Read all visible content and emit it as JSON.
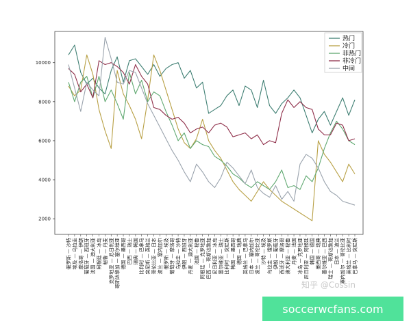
{
  "chart_data": {
    "type": "line",
    "ylim": [
      1200,
      11600
    ],
    "yticks": [
      2000,
      4000,
      6000,
      8000,
      10000
    ],
    "grid": false,
    "legend_position": "top-right",
    "categories": [
      "俄罗斯 — 沙特",
      "埃及 — 乌拉圭",
      "摩洛哥 — 伊朗",
      "葡萄牙 — 西班牙",
      "法国 — 澳大利亚",
      "阿根廷 — 冰岛",
      "秘鲁 — 丹麦",
      "克罗地亚 — 尼日利亚",
      "哥斯达黎加 — 塞尔维亚",
      "德国 — 墨西哥",
      "巴西 — 瑞士",
      "瑞典 — 韩国",
      "比利时 — 巴拿马",
      "突尼斯 — 英格兰",
      "哥伦比亚 — 日本",
      "波兰 — 塞内加尔",
      "俄罗斯 — 埃及",
      "葡萄牙 — 摩洛哥",
      "乌拉圭 — 沙特",
      "伊朗 — 西班牙",
      "丹麦 — 澳大利亚",
      "法国 — 秘鲁",
      "阿根廷 — 克罗地亚",
      "巴西 — 哥斯达黎加",
      "尼日利亚 — 冰岛",
      "塞尔维亚 — 瑞士",
      "比利时 — 突尼斯",
      "韩国 — 墨西哥",
      "德国 — 瑞典",
      "英格兰 — 巴拿马",
      "日本 — 塞内加尔",
      "波兰 — 哥伦比亚",
      "沙特 — 埃及",
      "乌拉圭 — 俄罗斯",
      "伊朗 — 葡萄牙",
      "西班牙 — 摩洛哥",
      "澳大利亚 — 秘鲁",
      "丹麦 — 法国",
      "冰岛 — 克罗地亚",
      "尼日利亚 — 阿根廷",
      "韩国 — 德国",
      "墨西哥 — 瑞典",
      "塞尔维亚 — 巴西",
      "瑞士 — 哥斯达黎加",
      "日本 — 波兰",
      "塞内加尔 — 哥伦比亚",
      "英格兰 — 比利时",
      "巴拿马 — 突尼斯"
    ],
    "series": [
      {
        "name": "热门",
        "color": "#3f7f73",
        "values": [
          10400,
          10900,
          9500,
          8900,
          9200,
          8700,
          8400,
          9600,
          10300,
          9000,
          10100,
          10200,
          9800,
          9400,
          9900,
          9300,
          9700,
          9900,
          10000,
          9200,
          9600,
          8700,
          9000,
          7400,
          7600,
          7800,
          8300,
          8600,
          7800,
          8800,
          8600,
          7700,
          9100,
          7800,
          7400,
          7900,
          8200,
          8600,
          8200,
          7300,
          6400,
          7100,
          7500,
          6800,
          7500,
          8200,
          7300,
          8100
        ]
      },
      {
        "name": "冷门",
        "color": "#b8a045",
        "values": [
          8800,
          8300,
          8600,
          10400,
          9400,
          7600,
          6500,
          5600,
          9600,
          8400,
          7800,
          7100,
          6100,
          8100,
          10400,
          9600,
          8600,
          7600,
          6600,
          5900,
          5600,
          6100,
          7100,
          6000,
          5500,
          5100,
          4500,
          3900,
          3500,
          3200,
          2900,
          3400,
          3900,
          3500,
          3200,
          2900,
          2700,
          2500,
          2300,
          2100,
          1900,
          6000,
          5300,
          4900,
          4400,
          3900,
          4800,
          4300
        ]
      },
      {
        "name": "非热门",
        "color": "#5fa870",
        "values": [
          9000,
          8000,
          9000,
          9300,
          8200,
          9300,
          8000,
          8600,
          7900,
          7100,
          9500,
          8400,
          9100,
          8000,
          8500,
          8300,
          7500,
          6800,
          6000,
          6400,
          5600,
          6000,
          5800,
          5700,
          5200,
          5000,
          4700,
          4300,
          4100,
          3800,
          3600,
          3900,
          3700,
          3500,
          3900,
          4500,
          3600,
          3700,
          3500,
          4200,
          3900,
          4600,
          5600,
          6400,
          7000,
          6600,
          6000,
          5800
        ]
      },
      {
        "name": "非冷门",
        "color": "#8f2f4a",
        "values": [
          9700,
          9400,
          8500,
          8900,
          8200,
          10100,
          9900,
          10000,
          9800,
          9500,
          8900,
          9900,
          9300,
          8900,
          7700,
          7600,
          7300,
          7100,
          7200,
          6900,
          6400,
          6600,
          6700,
          6400,
          6800,
          6900,
          6700,
          6200,
          6300,
          6400,
          6100,
          6300,
          5800,
          6000,
          5900,
          7400,
          8100,
          7700,
          8000,
          7700,
          7600,
          6600,
          6300,
          6300,
          6900,
          6800,
          6000,
          6100
        ]
      },
      {
        "name": "中间",
        "color": "#9aa3ad",
        "values": [
          9900,
          8700,
          7500,
          9000,
          8600,
          8300,
          11300,
          10200,
          9000,
          8900,
          9600,
          9500,
          8700,
          7900,
          7300,
          6700,
          6100,
          5500,
          5000,
          4400,
          3900,
          4800,
          4400,
          3900,
          3600,
          4100,
          4900,
          4600,
          4200,
          3800,
          4500,
          3600,
          3300,
          3100,
          3700,
          3000,
          3400,
          2900,
          4800,
          5300,
          5100,
          4600,
          3900,
          3400,
          3200,
          2900,
          2800,
          2700
        ]
      }
    ]
  },
  "watermark": "知乎 @Cossin",
  "banner": "soccerwcfans.com"
}
